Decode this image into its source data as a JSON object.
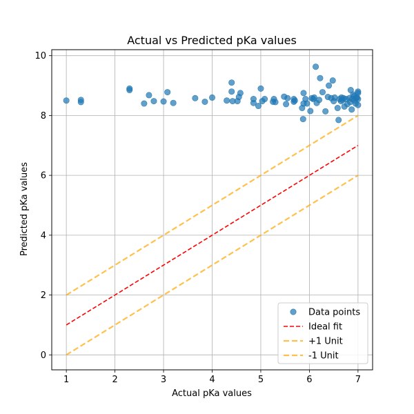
{
  "chart_data": {
    "type": "scatter",
    "title": "Actual vs Predicted pKa values",
    "xlabel": "Actual pKa values",
    "ylabel": "Predicted pKa values",
    "xlim": [
      0.7,
      7.3
    ],
    "ylim": [
      -0.5,
      10.2
    ],
    "xticks": [
      1,
      2,
      3,
      4,
      5,
      6,
      7
    ],
    "yticks": [
      0,
      2,
      4,
      6,
      8,
      10
    ],
    "grid": true,
    "legend_position": "bottom-right",
    "series": [
      {
        "name": "Data points",
        "kind": "scatter",
        "color": "#1f77b4",
        "points": [
          [
            1.0,
            8.5
          ],
          [
            1.3,
            8.45
          ],
          [
            1.3,
            8.52
          ],
          [
            2.3,
            8.85
          ],
          [
            2.3,
            8.9
          ],
          [
            2.6,
            8.4
          ],
          [
            2.7,
            8.68
          ],
          [
            2.8,
            8.48
          ],
          [
            3.0,
            8.47
          ],
          [
            3.08,
            8.78
          ],
          [
            3.2,
            8.42
          ],
          [
            3.65,
            8.58
          ],
          [
            3.85,
            8.46
          ],
          [
            4.0,
            8.6
          ],
          [
            4.3,
            8.5
          ],
          [
            4.4,
            9.1
          ],
          [
            4.4,
            8.8
          ],
          [
            4.42,
            8.48
          ],
          [
            4.52,
            8.48
          ],
          [
            4.55,
            8.62
          ],
          [
            4.58,
            8.75
          ],
          [
            4.85,
            8.42
          ],
          [
            4.85,
            8.55
          ],
          [
            4.95,
            8.32
          ],
          [
            5.0,
            8.9
          ],
          [
            5.03,
            8.48
          ],
          [
            5.08,
            8.55
          ],
          [
            5.25,
            8.46
          ],
          [
            5.27,
            8.55
          ],
          [
            5.3,
            8.45
          ],
          [
            5.48,
            8.63
          ],
          [
            5.52,
            8.38
          ],
          [
            5.55,
            8.58
          ],
          [
            5.68,
            8.46
          ],
          [
            5.68,
            8.55
          ],
          [
            5.7,
            8.5
          ],
          [
            5.85,
            8.25
          ],
          [
            5.87,
            7.88
          ],
          [
            5.88,
            8.75
          ],
          [
            5.88,
            8.4
          ],
          [
            5.92,
            8.55
          ],
          [
            5.95,
            8.4
          ],
          [
            6.02,
            8.15
          ],
          [
            6.05,
            8.58
          ],
          [
            6.08,
            8.55
          ],
          [
            6.1,
            8.6
          ],
          [
            6.13,
            9.63
          ],
          [
            6.15,
            8.42
          ],
          [
            6.2,
            8.52
          ],
          [
            6.22,
            9.25
          ],
          [
            6.27,
            8.78
          ],
          [
            6.33,
            8.14
          ],
          [
            6.38,
            8.62
          ],
          [
            6.4,
            9.0
          ],
          [
            6.45,
            8.58
          ],
          [
            6.48,
            9.17
          ],
          [
            6.5,
            8.48
          ],
          [
            6.52,
            8.6
          ],
          [
            6.58,
            8.25
          ],
          [
            6.6,
            7.85
          ],
          [
            6.62,
            8.55
          ],
          [
            6.65,
            8.48
          ],
          [
            6.66,
            8.6
          ],
          [
            6.68,
            8.52
          ],
          [
            6.7,
            8.58
          ],
          [
            6.72,
            8.3
          ],
          [
            6.75,
            8.55
          ],
          [
            6.78,
            8.38
          ],
          [
            6.82,
            8.58
          ],
          [
            6.84,
            8.45
          ],
          [
            6.85,
            8.85
          ],
          [
            6.87,
            8.2
          ],
          [
            6.88,
            8.55
          ],
          [
            6.9,
            8.7
          ],
          [
            6.92,
            8.65
          ],
          [
            6.93,
            8.5
          ],
          [
            6.95,
            8.4
          ],
          [
            6.96,
            8.58
          ],
          [
            6.98,
            8.6
          ],
          [
            7.0,
            8.75
          ],
          [
            7.0,
            8.8
          ],
          [
            7.0,
            8.55
          ],
          [
            7.0,
            8.35
          ]
        ]
      },
      {
        "name": "Ideal fit",
        "kind": "line",
        "color": "#ff0000",
        "dash": "dashed",
        "x": [
          1,
          7
        ],
        "y": [
          1,
          7
        ]
      },
      {
        "name": "+1 Unit",
        "kind": "line",
        "color": "#ffa500",
        "dash": "dashed",
        "x": [
          1,
          7
        ],
        "y": [
          2,
          8
        ]
      },
      {
        "name": "-1 Unit",
        "kind": "line",
        "color": "#ffa500",
        "dash": "dashed",
        "x": [
          1,
          7
        ],
        "y": [
          0,
          6
        ]
      }
    ]
  }
}
